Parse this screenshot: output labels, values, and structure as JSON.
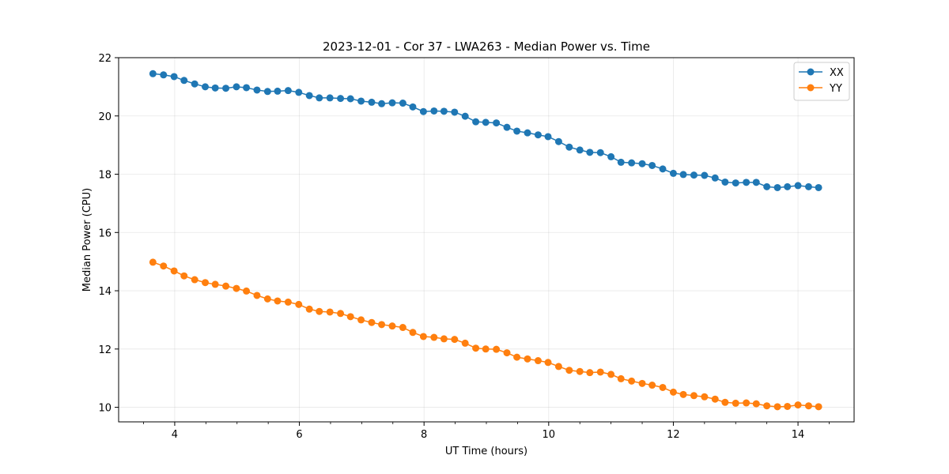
{
  "chart_data": {
    "type": "line",
    "title": "2023-12-01 - Cor 37 - LWA263 - Median Power vs. Time",
    "xlabel": "UT Time (hours)",
    "ylabel": "Median Power (CPU)",
    "xlim": [
      3.1,
      14.9
    ],
    "ylim": [
      9.5,
      22.0
    ],
    "xticks": [
      4,
      6,
      8,
      10,
      12,
      14
    ],
    "yticks": [
      10,
      12,
      14,
      16,
      18,
      20,
      22
    ],
    "xtick_labels": [
      "4",
      "6",
      "8",
      "10",
      "12",
      "14"
    ],
    "ytick_labels": [
      "10",
      "12",
      "14",
      "16",
      "18",
      "20",
      "22"
    ],
    "x_minor_step": 0.5,
    "grid": true,
    "legend_position": "top-right",
    "x": [
      3.65,
      3.82,
      3.99,
      4.15,
      4.32,
      4.49,
      4.65,
      4.82,
      4.99,
      5.15,
      5.32,
      5.49,
      5.65,
      5.82,
      5.99,
      6.16,
      6.32,
      6.49,
      6.66,
      6.82,
      6.99,
      7.16,
      7.32,
      7.49,
      7.66,
      7.82,
      7.99,
      8.16,
      8.32,
      8.49,
      8.66,
      8.83,
      8.99,
      9.16,
      9.33,
      9.49,
      9.66,
      9.83,
      9.99,
      10.16,
      10.33,
      10.5,
      10.66,
      10.83,
      11.0,
      11.16,
      11.33,
      11.5,
      11.66,
      11.83,
      12.0,
      12.16,
      12.33,
      12.5,
      12.67,
      12.83,
      13.0,
      13.17,
      13.33,
      13.5,
      13.67,
      13.83,
      14.0,
      14.17,
      14.33
    ],
    "series": [
      {
        "name": "XX",
        "color": "#1f77b4",
        "values": [
          21.45,
          21.41,
          21.35,
          21.22,
          21.1,
          21.0,
          20.96,
          20.95,
          21.0,
          20.97,
          20.89,
          20.84,
          20.85,
          20.87,
          20.81,
          20.7,
          20.62,
          20.62,
          20.6,
          20.59,
          20.51,
          20.47,
          20.42,
          20.45,
          20.44,
          20.31,
          20.15,
          20.17,
          20.16,
          20.13,
          19.99,
          19.8,
          19.78,
          19.76,
          19.61,
          19.48,
          19.42,
          19.35,
          19.29,
          19.12,
          18.93,
          18.83,
          18.75,
          18.74,
          18.6,
          18.41,
          18.39,
          18.36,
          18.3,
          18.18,
          18.03,
          17.99,
          17.97,
          17.96,
          17.87,
          17.73,
          17.7,
          17.72,
          17.72,
          17.57,
          17.54,
          17.57,
          17.61,
          17.57,
          17.54
        ]
      },
      {
        "name": "YY",
        "color": "#ff7f0e",
        "values": [
          14.98,
          14.85,
          14.68,
          14.51,
          14.38,
          14.28,
          14.22,
          14.16,
          14.08,
          13.99,
          13.84,
          13.72,
          13.65,
          13.61,
          13.53,
          13.37,
          13.29,
          13.27,
          13.22,
          13.11,
          13.0,
          12.91,
          12.84,
          12.79,
          12.74,
          12.57,
          12.43,
          12.4,
          12.35,
          12.33,
          12.2,
          12.03,
          12.0,
          11.99,
          11.87,
          11.72,
          11.66,
          11.6,
          11.54,
          11.4,
          11.27,
          11.23,
          11.19,
          11.21,
          11.13,
          10.98,
          10.9,
          10.82,
          10.76,
          10.68,
          10.52,
          10.44,
          10.4,
          10.36,
          10.28,
          10.17,
          10.14,
          10.15,
          10.12,
          10.05,
          10.02,
          10.03,
          10.08,
          10.05,
          10.02
        ]
      }
    ]
  }
}
